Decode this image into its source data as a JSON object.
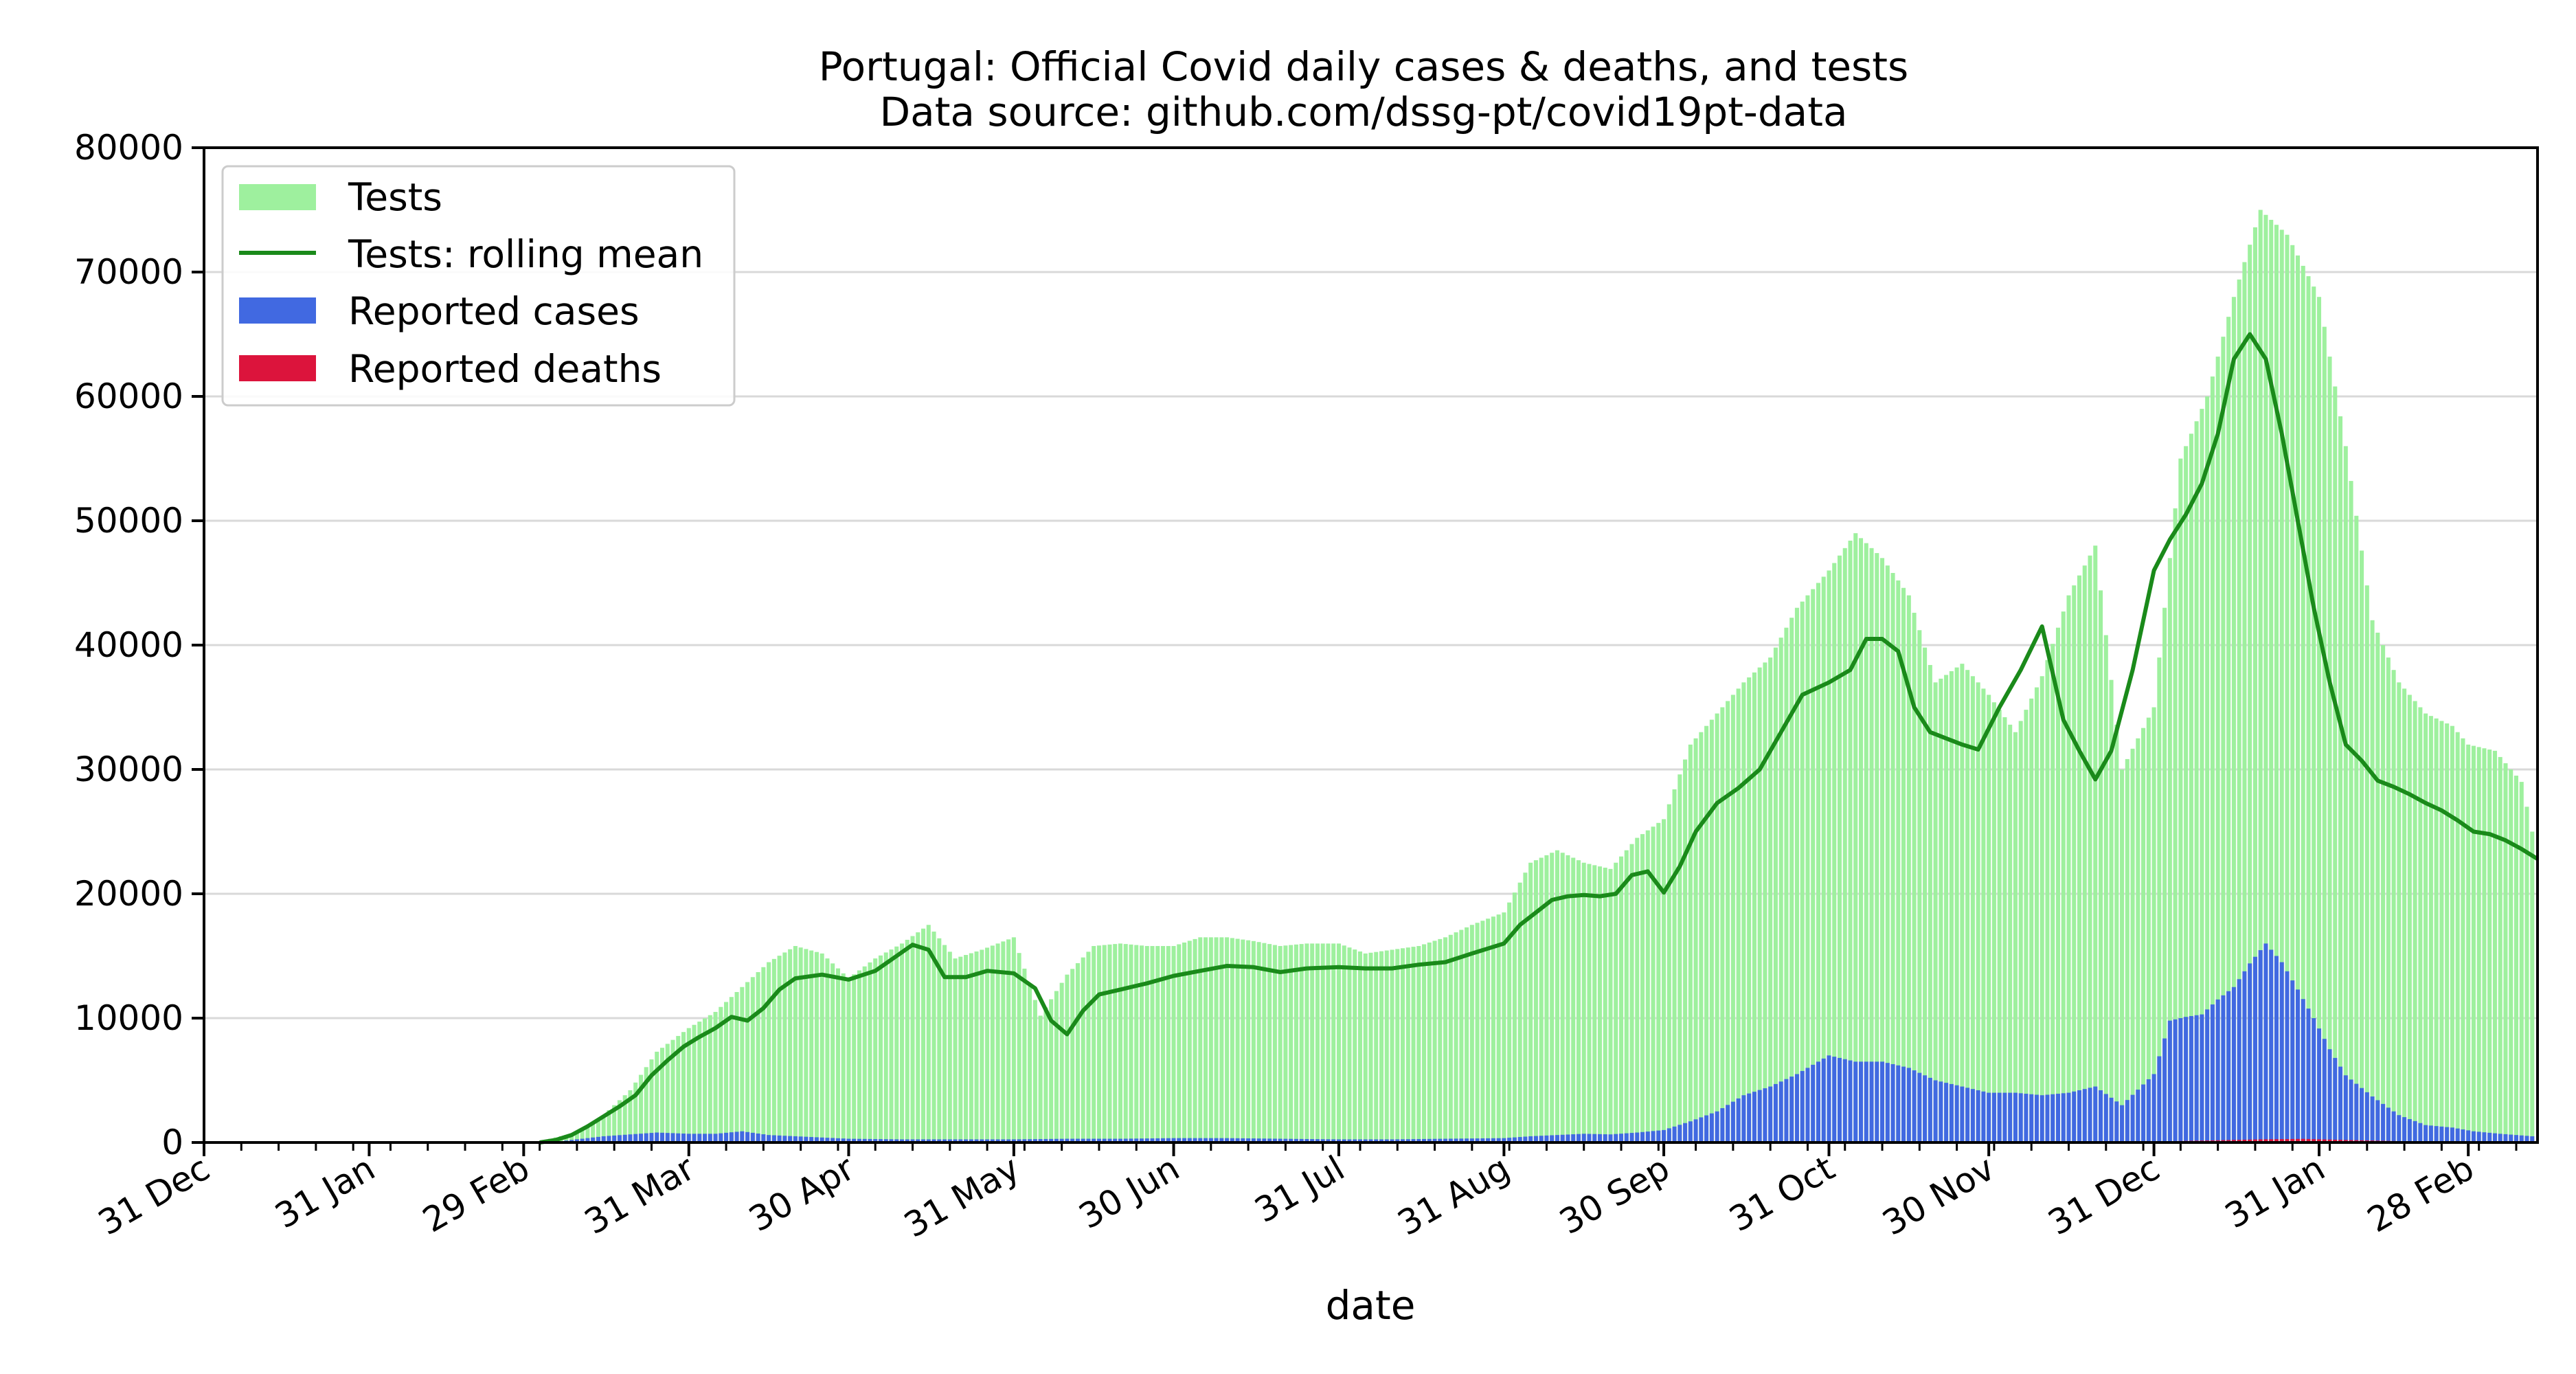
{
  "chart_data": {
    "type": "bar",
    "title": "Portugal: Official Covid daily cases & deaths, and tests",
    "subtitle": "Data source: github.com/dssg-pt/covid19pt-data",
    "xlabel": "date",
    "ylabel": "",
    "ylim": [
      0,
      80000
    ],
    "xlim": [
      "2019-12-31",
      "2021-03-13"
    ],
    "yticks": [
      "0",
      "10000",
      "20000",
      "30000",
      "40000",
      "50000",
      "60000",
      "70000",
      "80000"
    ],
    "xtick_labels": [
      "31 Dec",
      "31 Jan",
      "29 Feb",
      "31 Mar",
      "30 Apr",
      "31 May",
      "30 Jun",
      "31 Jul",
      "31 Aug",
      "30 Sep",
      "31 Oct",
      "30 Nov",
      "31 Dec",
      "31 Jan",
      "28 Feb"
    ],
    "xtick_dates": [
      "2019-12-31",
      "2020-01-31",
      "2020-02-29",
      "2020-03-31",
      "2020-04-30",
      "2020-05-31",
      "2020-06-30",
      "2020-07-31",
      "2020-08-31",
      "2020-09-30",
      "2020-10-31",
      "2020-11-30",
      "2020-12-31",
      "2021-01-31",
      "2021-02-28"
    ],
    "grid": "horizontal",
    "legend_position": "top-left",
    "series": [
      {
        "name": "Tests",
        "kind": "bar",
        "color": "#9ef09e",
        "x": [
          "2020-03-05",
          "2020-03-10",
          "2020-03-15",
          "2020-03-20",
          "2020-03-25",
          "2020-03-31",
          "2020-04-05",
          "2020-04-10",
          "2020-04-15",
          "2020-04-20",
          "2020-04-25",
          "2020-04-30",
          "2020-05-05",
          "2020-05-10",
          "2020-05-15",
          "2020-05-20",
          "2020-05-25",
          "2020-05-31",
          "2020-06-05",
          "2020-06-10",
          "2020-06-15",
          "2020-06-20",
          "2020-06-25",
          "2020-06-30",
          "2020-07-05",
          "2020-07-10",
          "2020-07-15",
          "2020-07-20",
          "2020-07-25",
          "2020-07-31",
          "2020-08-05",
          "2020-08-10",
          "2020-08-15",
          "2020-08-20",
          "2020-08-25",
          "2020-08-31",
          "2020-09-05",
          "2020-09-10",
          "2020-09-15",
          "2020-09-20",
          "2020-09-25",
          "2020-09-30",
          "2020-10-05",
          "2020-10-10",
          "2020-10-15",
          "2020-10-20",
          "2020-10-25",
          "2020-10-31",
          "2020-11-05",
          "2020-11-10",
          "2020-11-15",
          "2020-11-20",
          "2020-11-25",
          "2020-11-30",
          "2020-12-05",
          "2020-12-10",
          "2020-12-15",
          "2020-12-20",
          "2020-12-25",
          "2020-12-31",
          "2021-01-05",
          "2021-01-10",
          "2021-01-15",
          "2021-01-20",
          "2021-01-25",
          "2021-01-31",
          "2021-02-05",
          "2021-02-10",
          "2021-02-15",
          "2021-02-20",
          "2021-02-25",
          "2021-02-28",
          "2021-03-05",
          "2021-03-10",
          "2021-03-12"
        ],
        "values": [
          300,
          800,
          2200,
          4200,
          7300,
          9200,
          10500,
          12500,
          14500,
          15800,
          15200,
          13200,
          14800,
          16000,
          17500,
          14800,
          15500,
          16500,
          10200,
          13500,
          15800,
          16000,
          15800,
          15800,
          16500,
          16500,
          16200,
          15800,
          16000,
          16000,
          15200,
          15500,
          15800,
          16500,
          17500,
          18500,
          22500,
          23500,
          22500,
          22000,
          24500,
          26000,
          32000,
          34500,
          37000,
          39000,
          43000,
          46000,
          49000,
          47000,
          44000,
          37000,
          38500,
          36000,
          33000,
          37500,
          44000,
          48000,
          30000,
          35000,
          55000,
          60000,
          68000,
          75000,
          73000,
          68000,
          56000,
          42000,
          37000,
          34500,
          33500,
          32000,
          31500,
          29000,
          25000
        ]
      },
      {
        "name": "Tests: rolling mean",
        "kind": "line",
        "color": "#1a8a1a",
        "x": [
          "2020-03-03",
          "2020-03-06",
          "2020-03-09",
          "2020-03-12",
          "2020-03-15",
          "2020-03-18",
          "2020-03-21",
          "2020-03-24",
          "2020-03-27",
          "2020-03-30",
          "2020-04-02",
          "2020-04-05",
          "2020-04-08",
          "2020-04-11",
          "2020-04-14",
          "2020-04-17",
          "2020-04-20",
          "2020-04-25",
          "2020-04-30",
          "2020-05-05",
          "2020-05-08",
          "2020-05-12",
          "2020-05-15",
          "2020-05-18",
          "2020-05-22",
          "2020-05-26",
          "2020-05-31",
          "2020-06-04",
          "2020-06-07",
          "2020-06-10",
          "2020-06-13",
          "2020-06-16",
          "2020-06-20",
          "2020-06-25",
          "2020-06-30",
          "2020-07-05",
          "2020-07-10",
          "2020-07-15",
          "2020-07-20",
          "2020-07-25",
          "2020-07-31",
          "2020-08-05",
          "2020-08-10",
          "2020-08-15",
          "2020-08-20",
          "2020-08-25",
          "2020-08-31",
          "2020-09-03",
          "2020-09-06",
          "2020-09-09",
          "2020-09-12",
          "2020-09-15",
          "2020-09-18",
          "2020-09-21",
          "2020-09-24",
          "2020-09-27",
          "2020-09-30",
          "2020-10-03",
          "2020-10-06",
          "2020-10-10",
          "2020-10-14",
          "2020-10-18",
          "2020-10-22",
          "2020-10-26",
          "2020-10-31",
          "2020-11-04",
          "2020-11-07",
          "2020-11-10",
          "2020-11-13",
          "2020-11-16",
          "2020-11-19",
          "2020-11-22",
          "2020-11-25",
          "2020-11-28",
          "2020-12-02",
          "2020-12-06",
          "2020-12-10",
          "2020-12-14",
          "2020-12-17",
          "2020-12-20",
          "2020-12-23",
          "2020-12-27",
          "2020-12-31",
          "2021-01-03",
          "2021-01-06",
          "2021-01-09",
          "2021-01-12",
          "2021-01-15",
          "2021-01-18",
          "2021-01-21",
          "2021-01-24",
          "2021-01-27",
          "2021-01-30",
          "2021-02-02",
          "2021-02-05",
          "2021-02-08",
          "2021-02-11",
          "2021-02-14",
          "2021-02-17",
          "2021-02-20",
          "2021-02-23",
          "2021-02-26",
          "2021-03-01",
          "2021-03-04",
          "2021-03-07",
          "2021-03-10",
          "2021-03-13"
        ],
        "values": [
          0,
          200,
          600,
          1300,
          2100,
          2900,
          3800,
          5400,
          6600,
          7700,
          8500,
          9200,
          10100,
          9800,
          10800,
          12300,
          13200,
          13500,
          13100,
          13800,
          14700,
          15900,
          15500,
          13300,
          13300,
          13800,
          13600,
          12400,
          9800,
          8700,
          10600,
          11900,
          12300,
          12800,
          13400,
          13800,
          14200,
          14100,
          13700,
          14000,
          14100,
          14000,
          14000,
          14300,
          14500,
          15200,
          16000,
          17500,
          18500,
          19500,
          19800,
          19900,
          19800,
          20000,
          21500,
          21800,
          20100,
          22200,
          25000,
          27300,
          28500,
          30000,
          33000,
          36000,
          37000,
          38000,
          40500,
          40500,
          39500,
          35000,
          33000,
          32500,
          32000,
          31600,
          35000,
          38000,
          41500,
          34000,
          31500,
          29200,
          31500,
          38000,
          46000,
          48500,
          50500,
          53000,
          57000,
          63000,
          65000,
          63000,
          57000,
          50000,
          43000,
          37000,
          32000,
          30700,
          29100,
          28600,
          28000,
          27300,
          26700,
          25900,
          25000,
          24800,
          24300,
          23600,
          22800
        ]
      },
      {
        "name": "Reported cases",
        "kind": "bar",
        "color": "#4169e1",
        "x": [
          "2020-03-05",
          "2020-03-15",
          "2020-03-25",
          "2020-03-31",
          "2020-04-05",
          "2020-04-10",
          "2020-04-15",
          "2020-04-20",
          "2020-04-30",
          "2020-05-10",
          "2020-05-20",
          "2020-05-31",
          "2020-06-10",
          "2020-06-20",
          "2020-06-30",
          "2020-07-10",
          "2020-07-20",
          "2020-07-31",
          "2020-08-10",
          "2020-08-20",
          "2020-08-31",
          "2020-09-05",
          "2020-09-10",
          "2020-09-15",
          "2020-09-20",
          "2020-09-25",
          "2020-09-30",
          "2020-10-05",
          "2020-10-10",
          "2020-10-15",
          "2020-10-20",
          "2020-10-25",
          "2020-10-31",
          "2020-11-05",
          "2020-11-10",
          "2020-11-15",
          "2020-11-20",
          "2020-11-25",
          "2020-11-30",
          "2020-12-05",
          "2020-12-10",
          "2020-12-15",
          "2020-12-20",
          "2020-12-25",
          "2020-12-31",
          "2021-01-03",
          "2021-01-06",
          "2021-01-09",
          "2021-01-12",
          "2021-01-15",
          "2021-01-18",
          "2021-01-21",
          "2021-01-24",
          "2021-01-27",
          "2021-01-30",
          "2021-02-02",
          "2021-02-05",
          "2021-02-10",
          "2021-02-15",
          "2021-02-20",
          "2021-02-25",
          "2021-03-01",
          "2021-03-06",
          "2021-03-12"
        ],
        "values": [
          10,
          500,
          800,
          700,
          700,
          900,
          600,
          500,
          300,
          250,
          250,
          250,
          300,
          300,
          350,
          350,
          300,
          250,
          250,
          300,
          350,
          500,
          600,
          700,
          650,
          800,
          1000,
          1700,
          2500,
          3800,
          4500,
          5500,
          7000,
          6500,
          6500,
          6000,
          5000,
          4500,
          4000,
          4000,
          3800,
          4000,
          4500,
          3000,
          5500,
          9800,
          10100,
          10300,
          11500,
          12500,
          14400,
          16000,
          14500,
          12300,
          10000,
          7500,
          5400,
          3700,
          2200,
          1400,
          1200,
          900,
          700,
          500
        ]
      },
      {
        "name": "Reported deaths",
        "kind": "bar",
        "color": "#dc143c",
        "x": [
          "2020-04-01",
          "2020-05-01",
          "2020-06-01",
          "2020-07-01",
          "2020-08-01",
          "2020-09-01",
          "2020-10-01",
          "2020-10-15",
          "2020-11-01",
          "2020-11-15",
          "2020-12-01",
          "2020-12-15",
          "2021-01-01",
          "2021-01-10",
          "2021-01-20",
          "2021-01-28",
          "2021-02-05",
          "2021-02-15",
          "2021-02-25",
          "2021-03-05",
          "2021-03-12"
        ],
        "values": [
          25,
          15,
          10,
          5,
          3,
          5,
          10,
          20,
          45,
          70,
          80,
          80,
          90,
          160,
          250,
          290,
          200,
          110,
          50,
          30,
          20
        ]
      }
    ]
  }
}
